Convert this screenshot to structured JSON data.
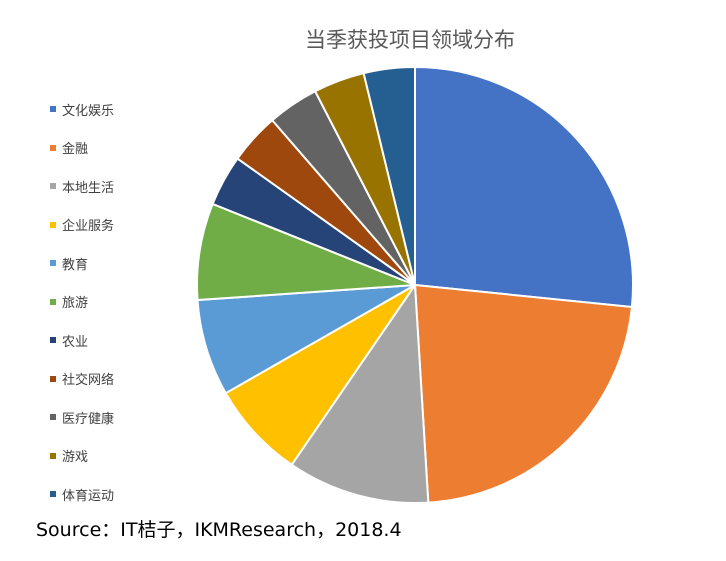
{
  "chart_data": {
    "type": "pie",
    "title": "当季获投项目领域分布",
    "categories": [
      "文化娱乐",
      "金融",
      "本地生活",
      "企业服务",
      "教育",
      "旅游",
      "农业",
      "社交网络",
      "医疗健康",
      "游戏",
      "体育运动"
    ],
    "values": [
      26.0,
      21.9,
      10.3,
      7.0,
      7.0,
      7.0,
      3.7,
      3.7,
      3.7,
      3.7,
      3.7
    ],
    "unit": "%",
    "colors": [
      "#4472C4",
      "#ED7D31",
      "#A5A5A5",
      "#FFC000",
      "#5B9BD5",
      "#70AD47",
      "#264478",
      "#9E480E",
      "#636363",
      "#997300",
      "#255E91"
    ],
    "legend_position": "left",
    "start_angle_deg": 0,
    "direction": "clockwise"
  },
  "source": "Source：IT桔子，IKMResearch，2018.4"
}
